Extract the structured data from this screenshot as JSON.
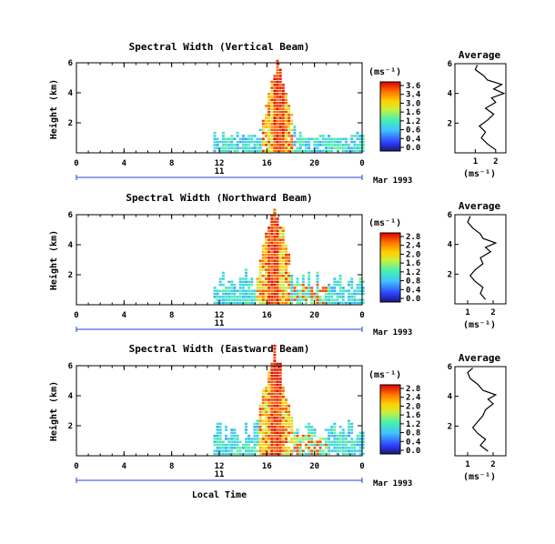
{
  "figure": {
    "xlabel": "Local Time",
    "date_label": "Mar 1993",
    "day_label": "11",
    "cbar_unit": "(ms⁻¹)",
    "avg_title": "Average",
    "avg_xlabel": "(ms⁻¹)",
    "ylabel": "Height (km)"
  },
  "chart_data": [
    {
      "type": "heatmap",
      "title": "Spectral Width (Vertical Beam)",
      "ylabel": "Height (km)",
      "x_ticks": [
        "0",
        "4",
        "8",
        "12",
        "16",
        "20",
        "0"
      ],
      "y_ticks": [
        "6",
        "4",
        "2"
      ],
      "xlim": [
        0,
        24
      ],
      "ylim": [
        0,
        6
      ],
      "colorbar_ticks": [
        "3.6",
        "3.4",
        "3.0",
        "1.6",
        "1.2",
        "0.6",
        "0.4",
        "0.0"
      ],
      "colorbar_range": [
        0,
        3.6
      ],
      "data_extent_x": [
        11.5,
        24
      ],
      "peak": {
        "time": 16.8,
        "height": 5.0
      },
      "average": {
        "title": "Average",
        "xlabel": "(ms⁻¹)",
        "x_ticks": [
          "1",
          "2"
        ],
        "y_ticks": [
          "6",
          "4",
          "2"
        ],
        "xlim": [
          0,
          2.5
        ],
        "ylim": [
          0,
          6
        ],
        "profile": [
          [
            2.0,
            0.2
          ],
          [
            1.6,
            0.6
          ],
          [
            1.3,
            1.0
          ],
          [
            1.5,
            1.4
          ],
          [
            1.2,
            1.8
          ],
          [
            1.6,
            2.2
          ],
          [
            1.9,
            2.6
          ],
          [
            1.5,
            3.0
          ],
          [
            2.0,
            3.4
          ],
          [
            1.8,
            3.7
          ],
          [
            2.4,
            4.0
          ],
          [
            1.9,
            4.3
          ],
          [
            2.3,
            4.6
          ],
          [
            1.6,
            4.9
          ],
          [
            1.4,
            5.2
          ],
          [
            1.0,
            5.6
          ],
          [
            1.1,
            5.9
          ]
        ]
      }
    },
    {
      "type": "heatmap",
      "title": "Spectral Width (Northward Beam)",
      "ylabel": "Height (km)",
      "x_ticks": [
        "0",
        "4",
        "8",
        "12",
        "16",
        "20",
        "0"
      ],
      "y_ticks": [
        "6",
        "4",
        "2"
      ],
      "xlim": [
        0,
        24
      ],
      "ylim": [
        0,
        6
      ],
      "colorbar_ticks": [
        "2.8",
        "2.4",
        "2.0",
        "1.6",
        "1.2",
        "0.8",
        "0.4",
        "0.0"
      ],
      "colorbar_range": [
        0,
        2.8
      ],
      "data_extent_x": [
        11.5,
        24
      ],
      "peak": {
        "time": 16.5,
        "height": 5.6
      },
      "average": {
        "title": "Average",
        "xlabel": "(ms⁻¹)",
        "x_ticks": [
          "1",
          "2"
        ],
        "y_ticks": [
          "6",
          "4",
          "2"
        ],
        "xlim": [
          0.5,
          2.5
        ],
        "ylim": [
          0,
          6
        ],
        "profile": [
          [
            1.7,
            0.3
          ],
          [
            1.5,
            0.7
          ],
          [
            1.6,
            1.1
          ],
          [
            1.3,
            1.5
          ],
          [
            1.1,
            1.9
          ],
          [
            1.3,
            2.3
          ],
          [
            1.6,
            2.7
          ],
          [
            1.5,
            3.1
          ],
          [
            1.9,
            3.5
          ],
          [
            1.7,
            3.8
          ],
          [
            2.1,
            4.1
          ],
          [
            1.6,
            4.4
          ],
          [
            1.5,
            4.7
          ],
          [
            1.2,
            5.1
          ],
          [
            1.0,
            5.5
          ],
          [
            1.1,
            5.9
          ]
        ]
      }
    },
    {
      "type": "heatmap",
      "title": "Spectral Width (Eastward Beam)",
      "ylabel": "Height (km)",
      "x_ticks": [
        "0",
        "4",
        "8",
        "12",
        "16",
        "20",
        "0"
      ],
      "y_ticks": [
        "6",
        "4",
        "2"
      ],
      "xlim": [
        0,
        24
      ],
      "ylim": [
        0,
        6
      ],
      "colorbar_ticks": [
        "2.8",
        "2.4",
        "2.0",
        "1.6",
        "1.2",
        "0.8",
        "0.4",
        "0.0"
      ],
      "colorbar_range": [
        0,
        2.8
      ],
      "data_extent_x": [
        11.5,
        24
      ],
      "peak": {
        "time": 16.6,
        "height": 5.7
      },
      "average": {
        "title": "Average",
        "xlabel": "(ms⁻¹)",
        "x_ticks": [
          "1",
          "2"
        ],
        "y_ticks": [
          "6",
          "4",
          "2"
        ],
        "xlim": [
          0.5,
          2.5
        ],
        "ylim": [
          0,
          6
        ],
        "profile": [
          [
            1.8,
            0.3
          ],
          [
            1.5,
            0.7
          ],
          [
            1.7,
            1.1
          ],
          [
            1.4,
            1.5
          ],
          [
            1.2,
            1.9
          ],
          [
            1.4,
            2.3
          ],
          [
            1.6,
            2.7
          ],
          [
            1.7,
            3.1
          ],
          [
            2.0,
            3.5
          ],
          [
            1.8,
            3.8
          ],
          [
            2.1,
            4.1
          ],
          [
            1.6,
            4.4
          ],
          [
            1.4,
            4.8
          ],
          [
            1.1,
            5.2
          ],
          [
            1.0,
            5.6
          ],
          [
            1.2,
            5.9
          ]
        ]
      }
    }
  ]
}
